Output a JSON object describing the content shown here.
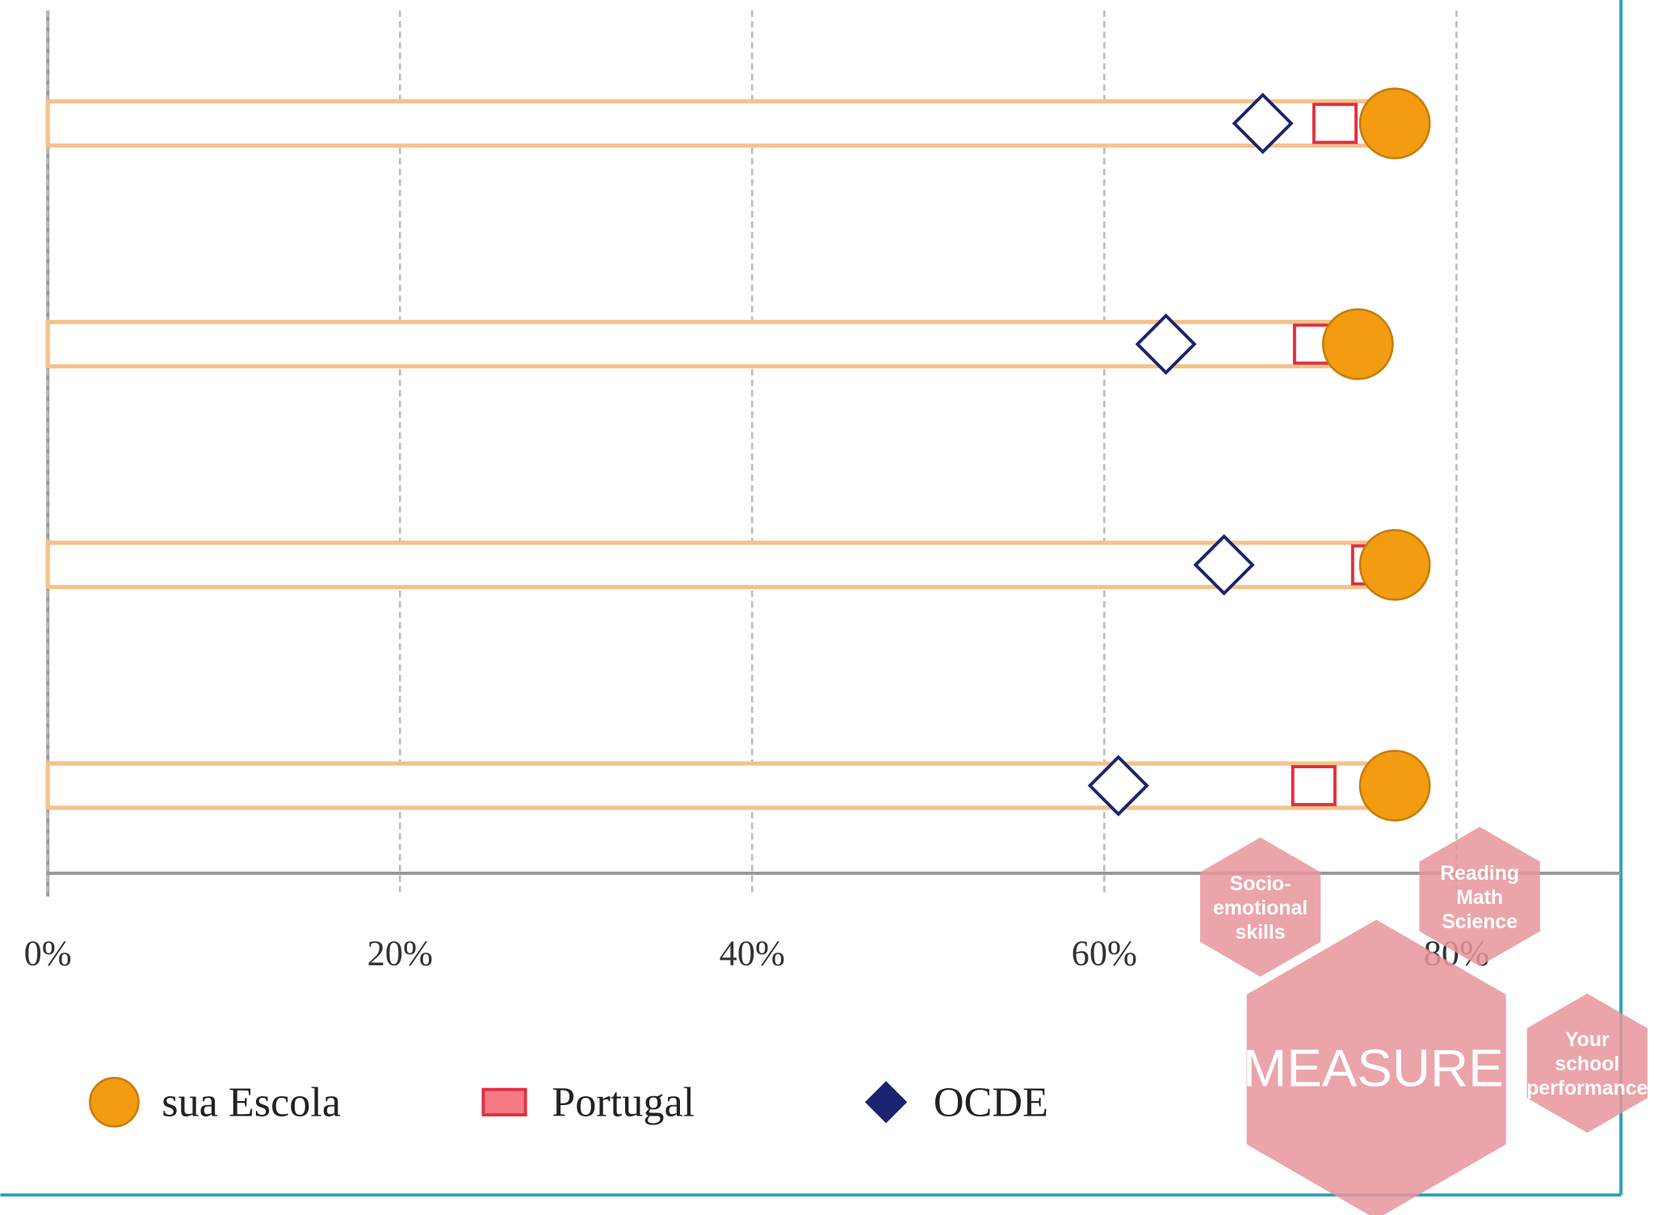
{
  "chart_data": {
    "type": "dot",
    "categories": [
      null,
      null,
      null,
      null
    ],
    "series": [
      {
        "name": "sua Escola",
        "color": "#f39c12",
        "marker": "circle",
        "values": [
          76.5,
          74.4,
          76.5,
          76.5
        ]
      },
      {
        "name": "Portugal",
        "color": "#e0303f",
        "marker": "square",
        "values": [
          73.1,
          72.0,
          75.3,
          71.9
        ]
      },
      {
        "name": "OCDE",
        "color": "#1a2370",
        "marker": "diamond",
        "values": [
          69.0,
          63.5,
          66.8,
          60.8
        ]
      }
    ],
    "xlim": [
      0,
      80
    ],
    "xticks": [
      {
        "value": 0,
        "label": "0%"
      },
      {
        "value": 20,
        "label": "20%"
      },
      {
        "value": 40,
        "label": "40%"
      },
      {
        "value": 60,
        "label": "60%"
      },
      {
        "value": 80,
        "label": "80%"
      }
    ],
    "grid": true
  },
  "overlay": {
    "center": "MEASURE",
    "hexagons": [
      [
        "Socio-",
        "emotional",
        "skills"
      ],
      [
        "Reading",
        "Math",
        "Science"
      ],
      [
        "Your",
        "school",
        "performance"
      ]
    ]
  }
}
